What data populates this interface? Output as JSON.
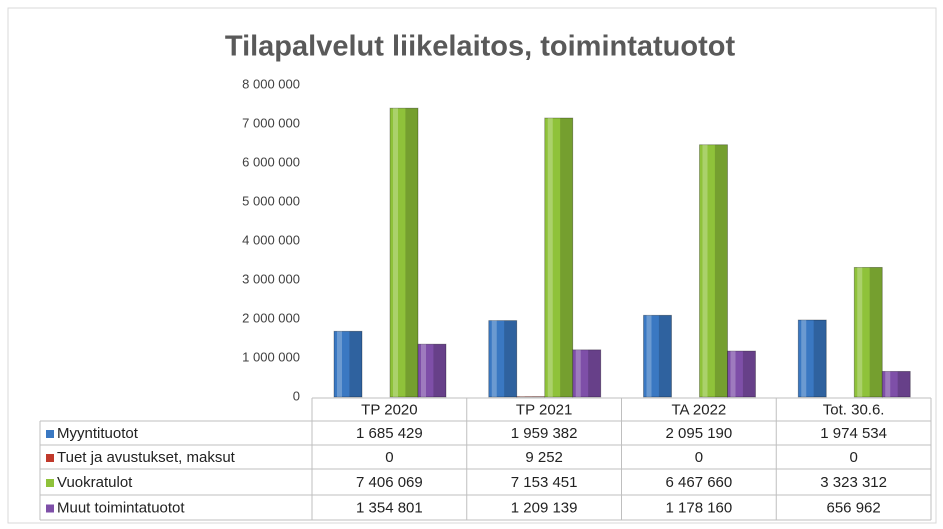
{
  "chart_data": {
    "type": "bar",
    "title": "Tilapalvelut liikelaitos, toimintatuotot",
    "categories": [
      "TP 2020",
      "TP 2021",
      "TA 2022",
      "Tot. 30.6."
    ],
    "series": [
      {
        "name": "Myyntituotot",
        "color": "#3a78c2",
        "values": [
          1685429,
          1959382,
          2095190,
          1974534
        ],
        "value_labels": [
          "1 685 429",
          "1 959 382",
          "2 095 190",
          "1 974 534"
        ]
      },
      {
        "name": "Tuet ja avustukset, maksut",
        "color": "#c0392b",
        "values": [
          0,
          9252,
          0,
          0
        ],
        "value_labels": [
          "0",
          "9 252",
          "0",
          "0"
        ]
      },
      {
        "name": "Vuokratulot",
        "color": "#8fc23a",
        "values": [
          7406069,
          7153451,
          6467660,
          3323312
        ],
        "value_labels": [
          "7 406 069",
          "7 153 451",
          "6 467 660",
          "3 323 312"
        ]
      },
      {
        "name": "Muut toimintatuotot",
        "color": "#7e4fa8",
        "values": [
          1354801,
          1209139,
          1178160,
          656962
        ],
        "value_labels": [
          "1 354 801",
          "1 209 139",
          "1 178 160",
          "656 962"
        ]
      }
    ],
    "ylim": [
      0,
      8000000
    ],
    "yticks": [
      0,
      {
        "value": 1000000,
        "label": "1 000 000"
      },
      {
        "value": 2000000,
        "label": "2 000 000"
      },
      {
        "value": 3000000,
        "label": "3 000 000"
      },
      {
        "value": 4000000,
        "label": "4 000 000"
      },
      {
        "value": 5000000,
        "label": "5 000 000"
      },
      {
        "value": 6000000,
        "label": "6 000 000"
      },
      {
        "value": 7000000,
        "label": "7 000 000"
      },
      {
        "value": 8000000,
        "label": "8 000 000"
      }
    ]
  }
}
